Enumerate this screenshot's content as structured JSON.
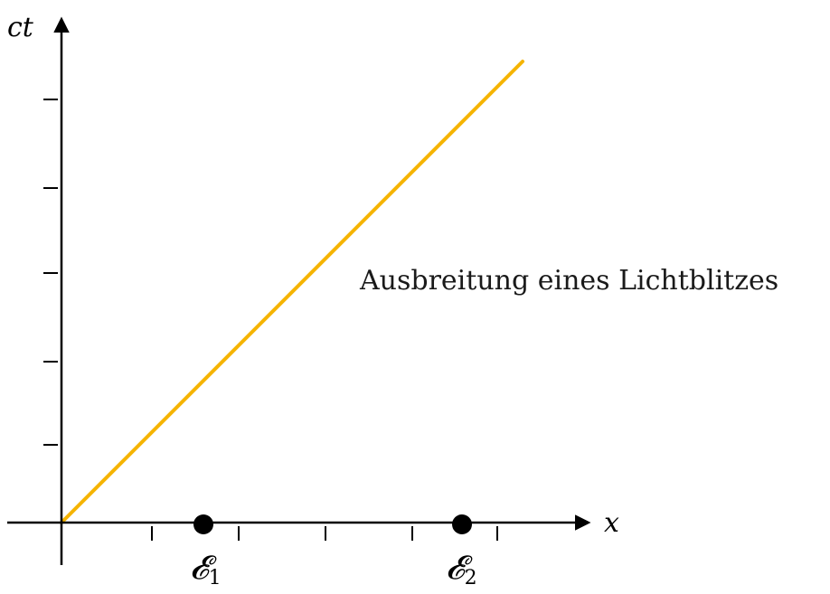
{
  "diagram": {
    "axes": {
      "x_label": "x",
      "y_label": "ct",
      "x_ticks": 5,
      "y_ticks": 5
    },
    "light_ray": {
      "label": "Ausbreitung eines Lichtblitzes",
      "color": "#f5b400"
    },
    "events": [
      {
        "symbol": "𝓔",
        "subscript": "1"
      },
      {
        "symbol": "𝓔",
        "subscript": "2"
      }
    ]
  }
}
